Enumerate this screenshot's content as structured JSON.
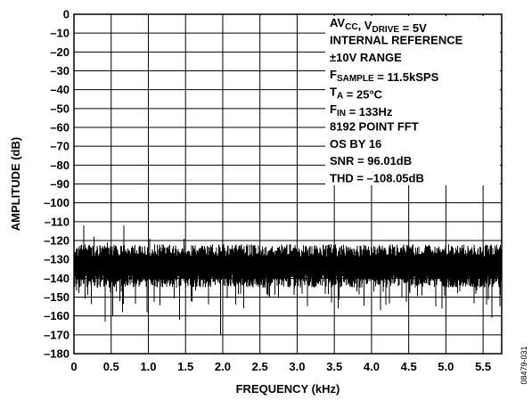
{
  "chart_data": {
    "type": "line",
    "xlabel": "FREQUENCY (kHz)",
    "ylabel": "AMPLITUDE (dB)",
    "xlim": [
      0,
      5.75
    ],
    "ylim": [
      -180,
      0
    ],
    "xticks": [
      0,
      0.5,
      1.0,
      1.5,
      2.0,
      2.5,
      3.0,
      3.5,
      4.0,
      4.5,
      5.0,
      5.5
    ],
    "xtick_labels": [
      "0",
      "0.5",
      "1.0",
      "1.5",
      "2.0",
      "2.5",
      "3.0",
      "3.5",
      "4.0",
      "4.5",
      "5.0",
      "5.5"
    ],
    "yticks": [
      0,
      -10,
      -20,
      -30,
      -40,
      -50,
      -60,
      -70,
      -80,
      -90,
      -100,
      -110,
      -120,
      -130,
      -140,
      -150,
      -160,
      -170,
      -180
    ],
    "ytick_labels": [
      "0",
      "–10",
      "–20",
      "–30",
      "–40",
      "–50",
      "–60",
      "–70",
      "–80",
      "–90",
      "–100",
      "–110",
      "–120",
      "–130",
      "–140",
      "–150",
      "–160",
      "–170",
      "–180"
    ],
    "grid": true,
    "series": [
      {
        "noise_floor_db": -133,
        "noise_band_db": [
          -125,
          -142
        ],
        "spurs": [
          {
            "x": 0.13,
            "y": -112
          },
          {
            "x": 0.27,
            "y": -118
          },
          {
            "x": 0.45,
            "y": -121
          },
          {
            "x": 0.67,
            "y": -112
          },
          {
            "x": 1.02,
            "y": -119
          },
          {
            "x": 1.48,
            "y": -119
          },
          {
            "x": 5.62,
            "y": -118
          }
        ],
        "dips": [
          {
            "x": 0.42,
            "y": -163
          },
          {
            "x": 0.52,
            "y": -160
          },
          {
            "x": 0.65,
            "y": -158
          },
          {
            "x": 0.98,
            "y": -158
          },
          {
            "x": 1.42,
            "y": -162
          },
          {
            "x": 1.97,
            "y": -170
          },
          {
            "x": 2.28,
            "y": -156
          },
          {
            "x": 3.55,
            "y": -156
          },
          {
            "x": 4.12,
            "y": -157
          },
          {
            "x": 4.95,
            "y": -156
          },
          {
            "x": 5.62,
            "y": -161
          }
        ]
      }
    ],
    "annotation": [
      {
        "main": "AV",
        "sub": "CC",
        "tail": ", V",
        "sub2": "DRIVE",
        "tail2": " = 5V"
      },
      {
        "main": "INTERNAL REFERENCE"
      },
      {
        "main": "±10V RANGE"
      },
      {
        "main": "F",
        "sub": "SAMPLE",
        "tail": " = 11.5kSPS"
      },
      {
        "main": "T",
        "sub": "A",
        "tail": " = 25°C"
      },
      {
        "main": "F",
        "sub": "IN",
        "tail": " = 133Hz"
      },
      {
        "main": "8192 POINT FFT"
      },
      {
        "main": "OS BY 16"
      },
      {
        "main": "SNR = 96.01dB"
      },
      {
        "main": "THD = –108.05dB"
      }
    ],
    "figure_id": "08479-031"
  }
}
